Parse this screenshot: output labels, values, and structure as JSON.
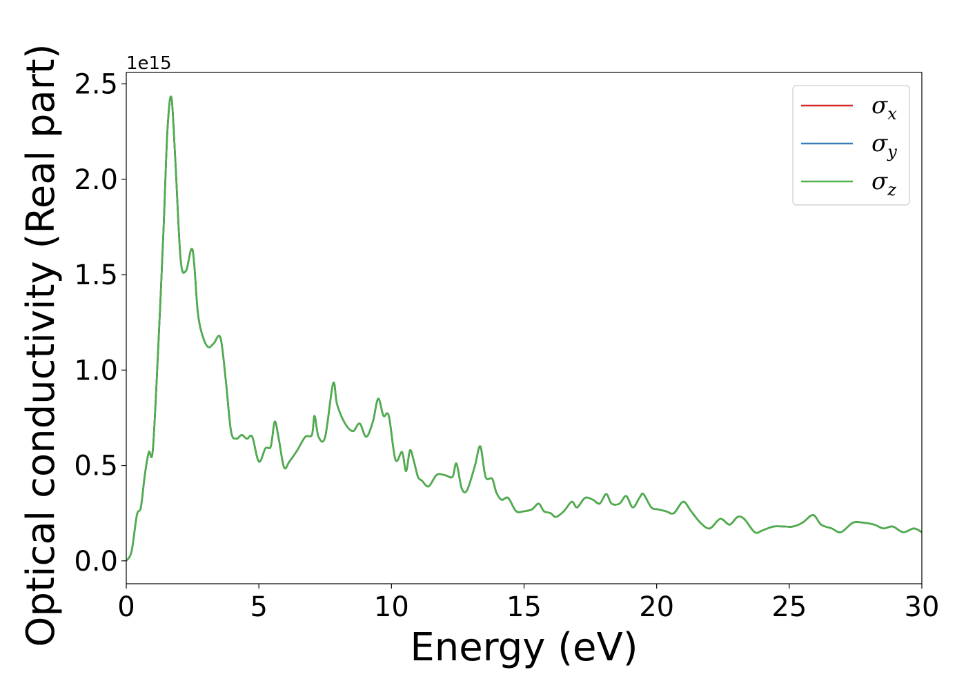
{
  "chart_data": {
    "type": "line",
    "title": "",
    "xlabel": "Energy (eV)",
    "ylabel": "Optical conductivity (Real part)",
    "y_offset_label": "1e15",
    "y_scale": 1000000000000000.0,
    "xlim": [
      0,
      30
    ],
    "ylim": [
      -0.12,
      2.56
    ],
    "xticks": [
      0,
      5,
      10,
      15,
      20,
      25,
      30
    ],
    "xtick_labels": [
      "0",
      "5",
      "10",
      "15",
      "20",
      "25",
      "30"
    ],
    "yticks": [
      0.0,
      0.5,
      1.0,
      1.5,
      2.0,
      2.5
    ],
    "ytick_labels": [
      "0.0",
      "0.5",
      "1.0",
      "1.5",
      "2.0",
      "2.5"
    ],
    "grid": false,
    "legend_position": "top-right",
    "x": [
      0,
      0.2,
      0.4,
      0.55,
      0.7,
      0.85,
      1.0,
      1.2,
      1.4,
      1.55,
      1.7,
      1.85,
      2.05,
      2.25,
      2.5,
      2.7,
      2.9,
      3.1,
      3.3,
      3.55,
      3.75,
      3.95,
      4.15,
      4.35,
      4.55,
      4.75,
      5.0,
      5.25,
      5.45,
      5.6,
      5.75,
      5.95,
      6.15,
      6.45,
      6.75,
      7.0,
      7.1,
      7.25,
      7.5,
      7.8,
      7.95,
      8.25,
      8.55,
      8.8,
      9.05,
      9.3,
      9.5,
      9.7,
      9.9,
      10.15,
      10.4,
      10.55,
      10.7,
      10.85,
      11.0,
      11.15,
      11.4,
      11.7,
      12.0,
      12.3,
      12.45,
      12.65,
      12.85,
      13.15,
      13.35,
      13.55,
      13.8,
      13.95,
      14.15,
      14.4,
      14.7,
      15.0,
      15.3,
      15.55,
      15.75,
      16.0,
      16.2,
      16.5,
      16.8,
      17.0,
      17.3,
      17.6,
      17.85,
      18.1,
      18.3,
      18.6,
      18.85,
      19.1,
      19.35,
      19.5,
      19.8,
      20.05,
      20.35,
      20.65,
      21.0,
      21.3,
      21.65,
      22.0,
      22.4,
      22.75,
      23.05,
      23.3,
      23.7,
      24.0,
      24.4,
      24.8,
      25.15,
      25.5,
      25.9,
      26.2,
      26.6,
      26.95,
      27.4,
      27.8,
      28.2,
      28.55,
      28.9,
      29.3,
      29.7,
      30.0
    ],
    "series": [
      {
        "name": "σx",
        "color": "#d62728",
        "values": [
          0.0,
          0.05,
          0.24,
          0.28,
          0.45,
          0.57,
          0.58,
          1.1,
          1.72,
          2.25,
          2.43,
          2.1,
          1.58,
          1.52,
          1.63,
          1.3,
          1.17,
          1.12,
          1.14,
          1.17,
          0.95,
          0.68,
          0.64,
          0.66,
          0.64,
          0.65,
          0.52,
          0.59,
          0.6,
          0.73,
          0.64,
          0.49,
          0.52,
          0.58,
          0.65,
          0.66,
          0.76,
          0.65,
          0.65,
          0.93,
          0.82,
          0.72,
          0.68,
          0.72,
          0.65,
          0.73,
          0.85,
          0.76,
          0.76,
          0.53,
          0.57,
          0.47,
          0.58,
          0.52,
          0.44,
          0.42,
          0.39,
          0.45,
          0.45,
          0.44,
          0.51,
          0.38,
          0.37,
          0.5,
          0.6,
          0.44,
          0.43,
          0.36,
          0.32,
          0.33,
          0.26,
          0.26,
          0.27,
          0.3,
          0.26,
          0.25,
          0.23,
          0.26,
          0.31,
          0.28,
          0.33,
          0.32,
          0.3,
          0.35,
          0.3,
          0.3,
          0.34,
          0.28,
          0.33,
          0.35,
          0.28,
          0.27,
          0.26,
          0.25,
          0.31,
          0.26,
          0.2,
          0.17,
          0.22,
          0.19,
          0.23,
          0.22,
          0.15,
          0.16,
          0.18,
          0.18,
          0.18,
          0.2,
          0.24,
          0.19,
          0.17,
          0.15,
          0.2,
          0.2,
          0.19,
          0.17,
          0.18,
          0.15,
          0.17,
          0.15
        ]
      },
      {
        "name": "σy",
        "color": "#377eb8",
        "values": [
          0.0,
          0.05,
          0.24,
          0.28,
          0.45,
          0.57,
          0.58,
          1.1,
          1.72,
          2.25,
          2.43,
          2.1,
          1.58,
          1.52,
          1.63,
          1.3,
          1.17,
          1.12,
          1.14,
          1.17,
          0.95,
          0.68,
          0.64,
          0.66,
          0.64,
          0.65,
          0.52,
          0.59,
          0.6,
          0.73,
          0.64,
          0.49,
          0.52,
          0.58,
          0.65,
          0.66,
          0.76,
          0.65,
          0.65,
          0.93,
          0.82,
          0.72,
          0.68,
          0.72,
          0.65,
          0.73,
          0.85,
          0.76,
          0.76,
          0.53,
          0.57,
          0.47,
          0.58,
          0.52,
          0.44,
          0.42,
          0.39,
          0.45,
          0.45,
          0.44,
          0.51,
          0.38,
          0.37,
          0.5,
          0.6,
          0.44,
          0.43,
          0.36,
          0.32,
          0.33,
          0.26,
          0.26,
          0.27,
          0.3,
          0.26,
          0.25,
          0.23,
          0.26,
          0.31,
          0.28,
          0.33,
          0.32,
          0.3,
          0.35,
          0.3,
          0.3,
          0.34,
          0.28,
          0.33,
          0.35,
          0.28,
          0.27,
          0.26,
          0.25,
          0.31,
          0.26,
          0.2,
          0.17,
          0.22,
          0.19,
          0.23,
          0.22,
          0.15,
          0.16,
          0.18,
          0.18,
          0.18,
          0.2,
          0.24,
          0.19,
          0.17,
          0.15,
          0.2,
          0.2,
          0.19,
          0.17,
          0.18,
          0.15,
          0.17,
          0.15
        ]
      },
      {
        "name": "σz",
        "color": "#4daf4a",
        "values": [
          0.0,
          0.05,
          0.24,
          0.28,
          0.45,
          0.57,
          0.58,
          1.1,
          1.72,
          2.25,
          2.43,
          2.1,
          1.58,
          1.52,
          1.63,
          1.3,
          1.17,
          1.12,
          1.14,
          1.17,
          0.95,
          0.68,
          0.64,
          0.66,
          0.64,
          0.65,
          0.52,
          0.59,
          0.6,
          0.73,
          0.64,
          0.49,
          0.52,
          0.58,
          0.65,
          0.66,
          0.76,
          0.65,
          0.65,
          0.93,
          0.82,
          0.72,
          0.68,
          0.72,
          0.65,
          0.73,
          0.85,
          0.76,
          0.76,
          0.53,
          0.57,
          0.47,
          0.58,
          0.52,
          0.44,
          0.42,
          0.39,
          0.45,
          0.45,
          0.44,
          0.51,
          0.38,
          0.37,
          0.5,
          0.6,
          0.44,
          0.43,
          0.36,
          0.32,
          0.33,
          0.26,
          0.26,
          0.27,
          0.3,
          0.26,
          0.25,
          0.23,
          0.26,
          0.31,
          0.28,
          0.33,
          0.32,
          0.3,
          0.35,
          0.3,
          0.3,
          0.34,
          0.28,
          0.33,
          0.35,
          0.28,
          0.27,
          0.26,
          0.25,
          0.31,
          0.26,
          0.2,
          0.17,
          0.22,
          0.19,
          0.23,
          0.22,
          0.15,
          0.16,
          0.18,
          0.18,
          0.18,
          0.2,
          0.24,
          0.19,
          0.17,
          0.15,
          0.2,
          0.2,
          0.19,
          0.17,
          0.18,
          0.15,
          0.17,
          0.15
        ]
      }
    ],
    "legend": [
      {
        "symbol": "σ",
        "sub": "x",
        "color": "#d62728"
      },
      {
        "symbol": "σ",
        "sub": "y",
        "color": "#377eb8"
      },
      {
        "symbol": "σ",
        "sub": "z",
        "color": "#4daf4a"
      }
    ]
  }
}
